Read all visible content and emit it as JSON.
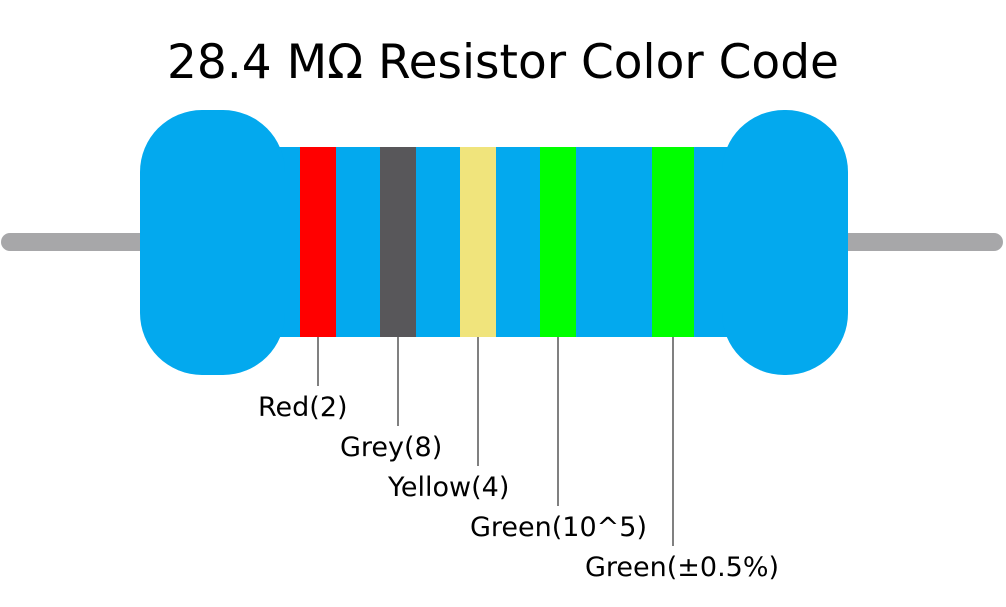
{
  "title": "28.4 MΩ Resistor Color Code",
  "bands": [
    {
      "label": "Red(2)",
      "color": "#ff0000"
    },
    {
      "label": "Grey(8)",
      "color": "#58575a"
    },
    {
      "label": "Yellow(4)",
      "color": "#f0e47c"
    },
    {
      "label": "Green(10^5)",
      "color": "#00ff00"
    },
    {
      "label": "Green(±0.5%)",
      "color": "#00ff00"
    }
  ]
}
